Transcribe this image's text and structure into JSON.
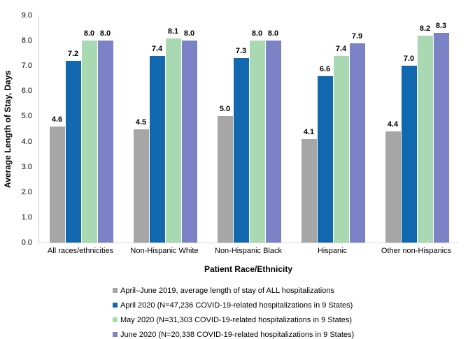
{
  "chart_data": {
    "type": "bar",
    "title": "",
    "xlabel": "Patient Race/Ethnicity",
    "ylabel": "Average Length of Stay, Days",
    "ylim": [
      0,
      9
    ],
    "ytick_step": 1,
    "ytick_format_decimals": 1,
    "grid": false,
    "legend_position": "bottom",
    "axis_line_color": "#c6c6c6",
    "label_color": "#000000",
    "categories": [
      "All races/ethnicities",
      "Non-Hispanic White",
      "Non-Hispanic Black",
      "Hispanic",
      "Other non-Hispanics"
    ],
    "series": [
      {
        "name": "April–June 2019, average length of stay of ALL hospitalizations",
        "color": "#A6A6A6",
        "values": [
          4.6,
          4.5,
          5.0,
          4.1,
          4.4
        ]
      },
      {
        "name": "April 2020 (N=47,236 COVID-19-related hospitalizations in 9 States)",
        "color": "#1168AE",
        "values": [
          7.2,
          7.4,
          7.3,
          6.6,
          7.0
        ]
      },
      {
        "name": "May 2020 (N=31,303 COVID-19-related hospitalizations in 9 States)",
        "color": "#A9D9B2",
        "values": [
          8.0,
          8.1,
          8.0,
          7.4,
          8.2
        ]
      },
      {
        "name": "June 2020 (N=20,338 COVID-19-related hospitalizations in 9 States)",
        "color": "#7B82C6",
        "values": [
          8.0,
          8.0,
          8.0,
          7.9,
          8.3
        ]
      }
    ]
  }
}
